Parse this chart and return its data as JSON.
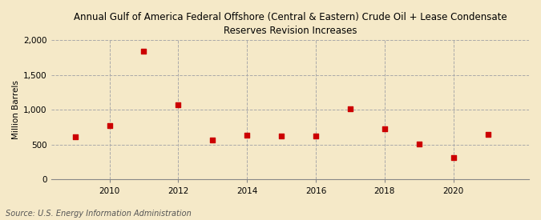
{
  "title": "Annual Gulf of America Federal Offshore (Central & Eastern) Crude Oil + Lease Condensate\nReserves Revision Increases",
  "ylabel": "Million Barrels",
  "source": "Source: U.S. Energy Information Administration",
  "years": [
    2009,
    2010,
    2011,
    2012,
    2013,
    2014,
    2015,
    2016,
    2017,
    2018,
    2019,
    2020,
    2021
  ],
  "values": [
    610,
    780,
    1840,
    1075,
    570,
    640,
    630,
    630,
    1020,
    730,
    510,
    320,
    650
  ],
  "ylim": [
    0,
    2000
  ],
  "yticks": [
    0,
    500,
    1000,
    1500,
    2000
  ],
  "ytick_labels": [
    "0",
    "500",
    "1,000",
    "1,500",
    "2,000"
  ],
  "xtick_start": 2010,
  "xtick_step": 2,
  "xtick_end": 2021,
  "marker_color": "#cc0000",
  "marker": "s",
  "marker_size": 5,
  "bg_color": "#f5e9c8",
  "plot_bg_color": "#f5e9c8",
  "grid_color": "#aaaaaa",
  "title_fontsize": 8.5,
  "title_bold": false,
  "label_fontsize": 7.5,
  "tick_fontsize": 7.5,
  "source_fontsize": 7
}
